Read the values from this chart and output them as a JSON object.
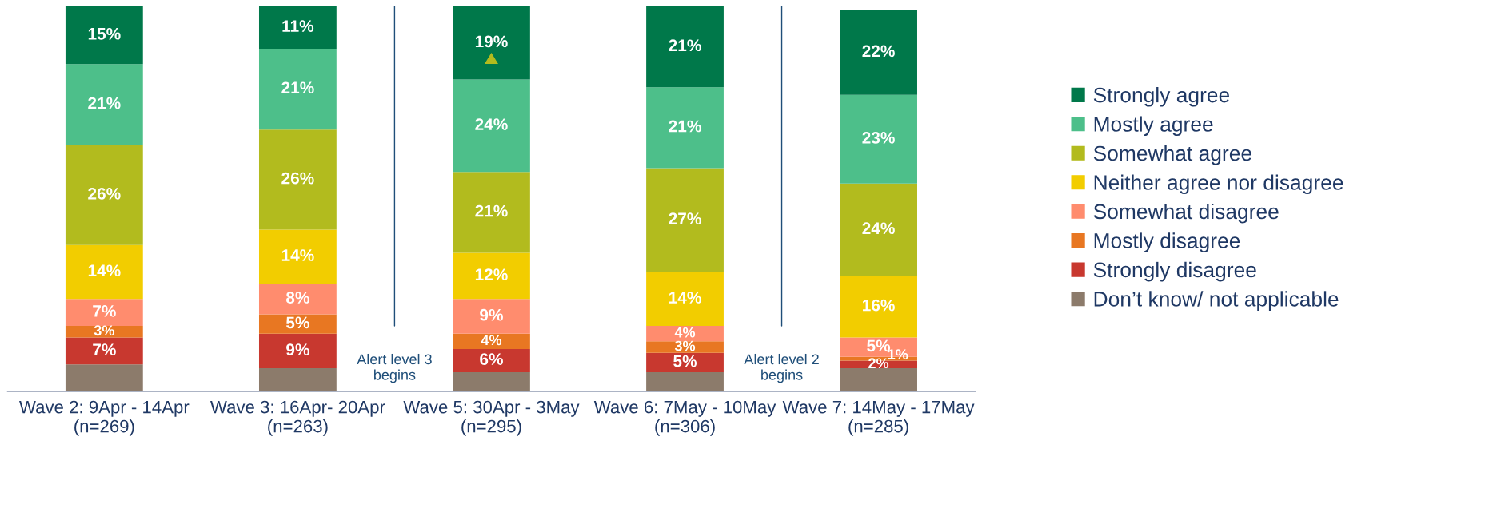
{
  "chart_data": {
    "type": "bar",
    "stacked": true,
    "legend": "right",
    "grid": false,
    "categories": [
      "Wave 2: 9Apr - 14Apr\n(n=269)",
      "Wave 3: 16Apr- 20Apr\n(n=263)",
      "Wave 5: 30Apr - 3May\n(n=295)",
      "Wave 6: 7May - 10May\n(n=306)",
      "Wave 7: 14May - 17May\n(n=285)"
    ],
    "series": [
      {
        "name": "Don’t know/ not applicable",
        "color": "#8c7b6b",
        "values": [
          7,
          6,
          5,
          5,
          6
        ],
        "value_labels": [
          null,
          null,
          null,
          null,
          null
        ]
      },
      {
        "name": "Strongly disagree",
        "color": "#c8382f",
        "values": [
          7,
          9,
          6,
          5,
          2
        ],
        "value_labels": [
          "7%",
          "9%",
          "6%",
          "5%",
          "2%"
        ]
      },
      {
        "name": "Mostly disagree",
        "color": "#e87722",
        "values": [
          3,
          5,
          4,
          3,
          1
        ],
        "value_labels": [
          "3%",
          "5%",
          "4%",
          "3%",
          "1%"
        ]
      },
      {
        "name": "Somewhat disagree",
        "color": "#ff8c6e",
        "values": [
          7,
          8,
          9,
          4,
          5
        ],
        "value_labels": [
          "7%",
          "8%",
          "9%",
          "4%",
          "5%"
        ]
      },
      {
        "name": "Neither agree nor disagree",
        "color": "#f2cd00",
        "values": [
          14,
          14,
          12,
          14,
          16
        ],
        "value_labels": [
          "14%",
          "14%",
          "12%",
          "14%",
          "16%"
        ]
      },
      {
        "name": "Somewhat agree",
        "color": "#b2bb1e",
        "values": [
          26,
          26,
          21,
          27,
          24
        ],
        "value_labels": [
          "26%",
          "26%",
          "21%",
          "27%",
          "24%"
        ]
      },
      {
        "name": "Mostly agree",
        "color": "#4dbf8a",
        "values": [
          21,
          21,
          24,
          21,
          23
        ],
        "value_labels": [
          "21%",
          "21%",
          "24%",
          "21%",
          "23%"
        ]
      },
      {
        "name": "Strongly agree",
        "color": "#00784a",
        "values": [
          15,
          11,
          19,
          21,
          22
        ],
        "value_labels": [
          "15%",
          "11%",
          "19%",
          "21%",
          "22%"
        ]
      }
    ],
    "annotations": [
      "Alert level 3\nbegins",
      "Alert level 2\nbegins"
    ]
  }
}
